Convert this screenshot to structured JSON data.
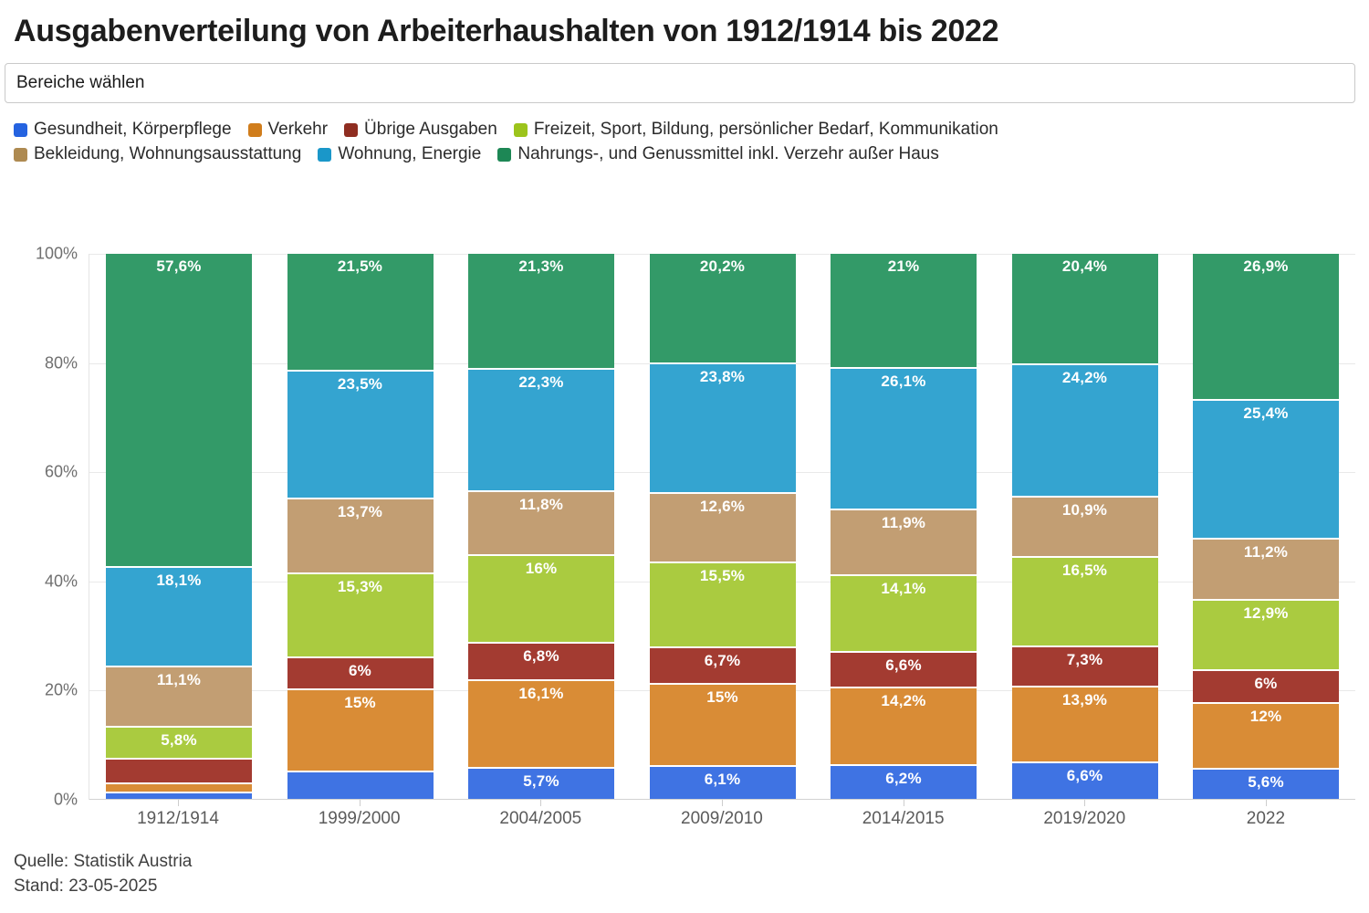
{
  "title": "Ausgabenverteilung von Arbeiterhaushalten von 1912/1914 bis 2022",
  "filter": {
    "placeholder": "Bereiche wählen"
  },
  "footer": {
    "source": "Quelle: Statistik Austria",
    "stand": "Stand: 23-05-2025"
  },
  "chart_data": {
    "type": "bar",
    "stacked": true,
    "unit": "percent",
    "title": "Ausgabenverteilung von Arbeiterhaushalten von 1912/1914 bis 2022",
    "categories": [
      "1912/1914",
      "1999/2000",
      "2004/2005",
      "2009/2010",
      "2014/2015",
      "2019/2020",
      "2022"
    ],
    "ylim": [
      0,
      100
    ],
    "yticks": [
      {
        "value": 0,
        "label": "0%"
      },
      {
        "value": 20,
        "label": "20%"
      },
      {
        "value": 40,
        "label": "40%"
      },
      {
        "value": 60,
        "label": "60%"
      },
      {
        "value": 80,
        "label": "80%"
      },
      {
        "value": 100,
        "label": "100%"
      }
    ],
    "grid": "horizontal",
    "legend_position": "top",
    "legend_rows": [
      [
        0,
        1,
        2,
        3
      ],
      [
        4,
        5,
        6
      ]
    ],
    "series": [
      {
        "name": "Gesundheit, Körperpflege",
        "legend_color": "#2563e0",
        "bar_color": "#3f73e3",
        "values": [
          1.2,
          5,
          5.7,
          6.1,
          6.2,
          6.6,
          5.6
        ],
        "labels": [
          "",
          "",
          "5,7%",
          "6,1%",
          "6,2%",
          "6,6%",
          "5,6%"
        ]
      },
      {
        "name": "Verkehr",
        "legend_color": "#d07d1c",
        "bar_color": "#d98c36",
        "values": [
          1.6,
          15,
          16.1,
          15,
          14.2,
          13.9,
          12
        ],
        "labels": [
          "",
          "15%",
          "16,1%",
          "15%",
          "14,2%",
          "13,9%",
          "12%"
        ]
      },
      {
        "name": "Übrige Ausgaben",
        "legend_color": "#8f2d21",
        "bar_color": "#a33b31",
        "values": [
          4.6,
          6,
          6.8,
          6.7,
          6.6,
          7.3,
          6
        ],
        "labels": [
          "",
          "6%",
          "6,8%",
          "6,7%",
          "6,6%",
          "7,3%",
          "6%"
        ]
      },
      {
        "name": "Freizeit, Sport, Bildung, persönlicher Bedarf, Kommunikation",
        "legend_color": "#9cc41c",
        "bar_color": "#aacb40",
        "values": [
          5.8,
          15.3,
          16,
          15.5,
          14.1,
          16.5,
          12.9
        ],
        "labels": [
          "5,8%",
          "15,3%",
          "16%",
          "15,5%",
          "14,1%",
          "16,5%",
          "12,9%"
        ]
      },
      {
        "name": "Bekleidung, Wohnungsausstattung",
        "legend_color": "#ae8a51",
        "bar_color": "#c29e73",
        "values": [
          11.1,
          13.7,
          11.8,
          12.6,
          11.9,
          10.9,
          11.2
        ],
        "labels": [
          "11,1%",
          "13,7%",
          "11,8%",
          "12,6%",
          "11,9%",
          "10,9%",
          "11,2%"
        ]
      },
      {
        "name": "Wohnung, Energie",
        "legend_color": "#1a97c9",
        "bar_color": "#34a4d0",
        "values": [
          18.1,
          23.5,
          22.3,
          23.8,
          26.1,
          24.2,
          25.4
        ],
        "labels": [
          "18,1%",
          "23,5%",
          "22,3%",
          "23,8%",
          "26,1%",
          "24,2%",
          "25,4%"
        ]
      },
      {
        "name": "Nahrungs-, und Genussmittel inkl. Verzehr außer Haus",
        "legend_color": "#1d8755",
        "bar_color": "#339a68",
        "values": [
          57.6,
          21.5,
          21.3,
          20.2,
          21,
          20.4,
          26.9
        ],
        "labels": [
          "57,6%",
          "21,5%",
          "21,3%",
          "20,2%",
          "21%",
          "20,4%",
          "26,9%"
        ]
      }
    ]
  }
}
